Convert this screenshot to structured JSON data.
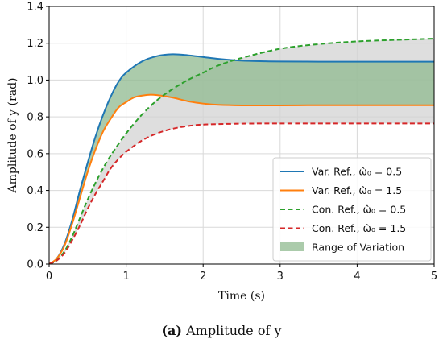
{
  "chart_data": {
    "type": "line",
    "xlabel": "Time (s)",
    "ylabel": "Amplitude of y (rad)",
    "xlim": [
      0,
      5
    ],
    "ylim": [
      0,
      1.4
    ],
    "xticks": [
      "0",
      "1",
      "2",
      "3",
      "4",
      "5"
    ],
    "yticks": [
      "0.0",
      "0.2",
      "0.4",
      "0.6",
      "0.8",
      "1.0",
      "1.2",
      "1.4"
    ],
    "grid": true,
    "legend_position": "lower-right",
    "series": [
      {
        "name": "Var. Ref., ω̂₀ = 0.5",
        "color": "#1f77b4",
        "style": "solid",
        "x": [
          0,
          0.1,
          0.2,
          0.3,
          0.4,
          0.5,
          0.6,
          0.7,
          0.8,
          0.9,
          1.0,
          1.2,
          1.4,
          1.6,
          1.8,
          2.0,
          2.2,
          2.4,
          2.6,
          2.8,
          3.0,
          3.5,
          4.0,
          4.5,
          5.0
        ],
        "y": [
          0,
          0.03,
          0.11,
          0.24,
          0.4,
          0.55,
          0.69,
          0.81,
          0.91,
          0.99,
          1.04,
          1.1,
          1.13,
          1.14,
          1.135,
          1.125,
          1.115,
          1.108,
          1.104,
          1.102,
          1.101,
          1.1,
          1.1,
          1.1,
          1.1
        ]
      },
      {
        "name": "Var. Ref., ω̂₀ = 1.5",
        "color": "#ff7f0e",
        "style": "solid",
        "x": [
          0,
          0.1,
          0.2,
          0.3,
          0.4,
          0.5,
          0.6,
          0.7,
          0.8,
          0.9,
          1.0,
          1.1,
          1.2,
          1.3,
          1.4,
          1.6,
          1.8,
          2.0,
          2.2,
          2.5,
          3.0,
          3.5,
          4.0,
          4.5,
          5.0
        ],
        "y": [
          0,
          0.03,
          0.1,
          0.22,
          0.36,
          0.5,
          0.62,
          0.72,
          0.79,
          0.85,
          0.88,
          0.905,
          0.915,
          0.92,
          0.918,
          0.905,
          0.885,
          0.872,
          0.865,
          0.862,
          0.862,
          0.863,
          0.863,
          0.863,
          0.863
        ]
      },
      {
        "name": "Con. Ref., ω̂₀ = 0.5",
        "color": "#2ca02c",
        "style": "dashed",
        "x": [
          0,
          0.1,
          0.2,
          0.3,
          0.4,
          0.5,
          0.6,
          0.7,
          0.8,
          1.0,
          1.2,
          1.4,
          1.6,
          1.8,
          2.0,
          2.2,
          2.5,
          3.0,
          3.5,
          4.0,
          4.5,
          5.0
        ],
        "y": [
          0,
          0.02,
          0.07,
          0.15,
          0.25,
          0.35,
          0.44,
          0.52,
          0.59,
          0.71,
          0.81,
          0.89,
          0.95,
          1.0,
          1.04,
          1.08,
          1.12,
          1.17,
          1.195,
          1.21,
          1.218,
          1.225
        ]
      },
      {
        "name": "Con. Ref., ω̂₀ = 1.5",
        "color": "#d62728",
        "style": "dashed",
        "x": [
          0,
          0.1,
          0.2,
          0.3,
          0.4,
          0.5,
          0.6,
          0.7,
          0.8,
          0.9,
          1.0,
          1.2,
          1.4,
          1.6,
          1.8,
          2.0,
          2.5,
          3.0,
          3.5,
          4.0,
          4.5,
          5.0
        ],
        "y": [
          0,
          0.02,
          0.06,
          0.13,
          0.21,
          0.3,
          0.38,
          0.45,
          0.52,
          0.57,
          0.61,
          0.67,
          0.71,
          0.735,
          0.75,
          0.758,
          0.763,
          0.764,
          0.764,
          0.764,
          0.764,
          0.764
        ]
      }
    ],
    "bands": [
      {
        "name": "Range of Variation",
        "color": "#8fb98f",
        "between": [
          0,
          1
        ],
        "x_range": [
          0,
          5
        ]
      },
      {
        "color": "#d3d3d3",
        "between": [
          2,
          3
        ],
        "x_range": [
          0,
          5
        ]
      }
    ],
    "legend": [
      {
        "label": "Var. Ref., ω̂₀ = 0.5",
        "marker": "line",
        "color": "#1f77b4",
        "style": "solid"
      },
      {
        "label": "Var. Ref., ω̂₀ = 1.5",
        "marker": "line",
        "color": "#ff7f0e",
        "style": "solid"
      },
      {
        "label": "Con. Ref., ω̂₀ = 0.5",
        "marker": "line",
        "color": "#2ca02c",
        "style": "dashed"
      },
      {
        "label": "Con. Ref., ω̂₀ = 1.5",
        "marker": "line",
        "color": "#d62728",
        "style": "dashed"
      },
      {
        "label": "Range of Variation",
        "marker": "patch",
        "color": "#8fb98f",
        "style": "fill"
      }
    ]
  },
  "caption": {
    "tag": "(a)",
    "text": "Amplitude of y"
  }
}
